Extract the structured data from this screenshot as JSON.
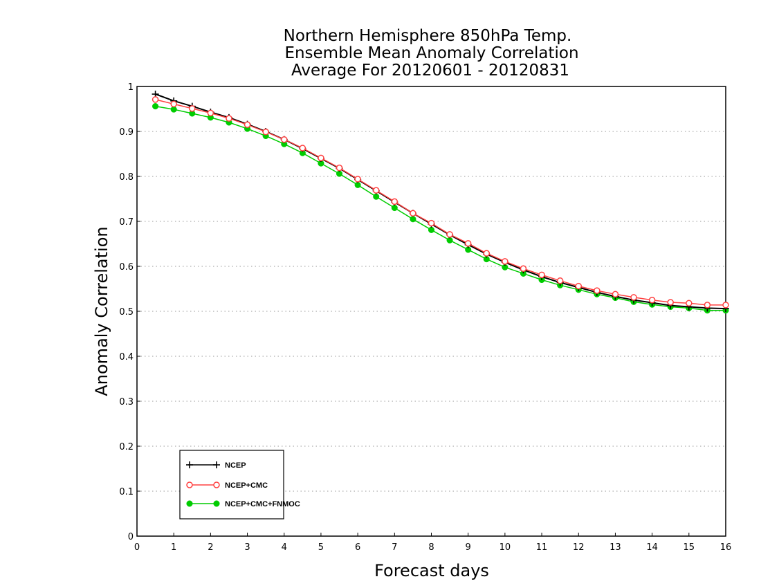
{
  "chart_data": {
    "type": "line",
    "title_lines": [
      "Northern Hemisphere 850hPa Temp.",
      "Ensemble Mean Anomaly Correlation",
      "Average For 20120601 - 20120831"
    ],
    "xlabel": "Forecast days",
    "ylabel": "Anomaly Correlation",
    "xlim": [
      0,
      16
    ],
    "ylim": [
      0,
      1
    ],
    "x_ticks": [
      "0",
      "1",
      "2",
      "3",
      "4",
      "5",
      "6",
      "7",
      "8",
      "9",
      "10",
      "11",
      "12",
      "13",
      "14",
      "15",
      "16"
    ],
    "y_ticks": [
      "0",
      "0.1",
      "0.2",
      "0.3",
      "0.4",
      "0.5",
      "0.6",
      "0.7",
      "0.8",
      "0.9",
      "1"
    ],
    "grid": "horizontal dotted",
    "legend_position": "bottom-left",
    "x": [
      0.5,
      1,
      1.5,
      2,
      2.5,
      3,
      3.5,
      4,
      4.5,
      5,
      5.5,
      6,
      6.5,
      7,
      7.5,
      8,
      8.5,
      9,
      9.5,
      10,
      10.5,
      11,
      11.5,
      12,
      12.5,
      13,
      13.5,
      14,
      14.5,
      15,
      15.5,
      16
    ],
    "series": [
      {
        "name": "NCEP",
        "color": "#000000",
        "marker": "plus",
        "values": [
          0.983,
          0.968,
          0.956,
          0.943,
          0.931,
          0.916,
          0.9,
          0.882,
          0.862,
          0.84,
          0.818,
          0.793,
          0.768,
          0.743,
          0.718,
          0.694,
          0.67,
          0.648,
          0.627,
          0.609,
          0.592,
          0.577,
          0.564,
          0.553,
          0.542,
          0.533,
          0.525,
          0.519,
          0.513,
          0.51,
          0.507,
          0.506
        ]
      },
      {
        "name": "NCEP+CMC",
        "color": "#ff4040",
        "marker": "open-circle",
        "values": [
          0.971,
          0.961,
          0.951,
          0.941,
          0.929,
          0.915,
          0.899,
          0.882,
          0.863,
          0.841,
          0.819,
          0.794,
          0.769,
          0.744,
          0.718,
          0.696,
          0.671,
          0.651,
          0.629,
          0.611,
          0.595,
          0.581,
          0.568,
          0.556,
          0.546,
          0.538,
          0.531,
          0.525,
          0.52,
          0.518,
          0.514,
          0.514
        ]
      },
      {
        "name": "NCEP+CMC+FNMOC",
        "color": "#00cc00",
        "marker": "filled-circle",
        "values": [
          0.956,
          0.949,
          0.94,
          0.931,
          0.92,
          0.906,
          0.89,
          0.872,
          0.852,
          0.829,
          0.806,
          0.781,
          0.755,
          0.73,
          0.705,
          0.681,
          0.658,
          0.637,
          0.616,
          0.598,
          0.584,
          0.57,
          0.558,
          0.548,
          0.538,
          0.53,
          0.521,
          0.515,
          0.51,
          0.507,
          0.502,
          0.502
        ]
      }
    ]
  }
}
